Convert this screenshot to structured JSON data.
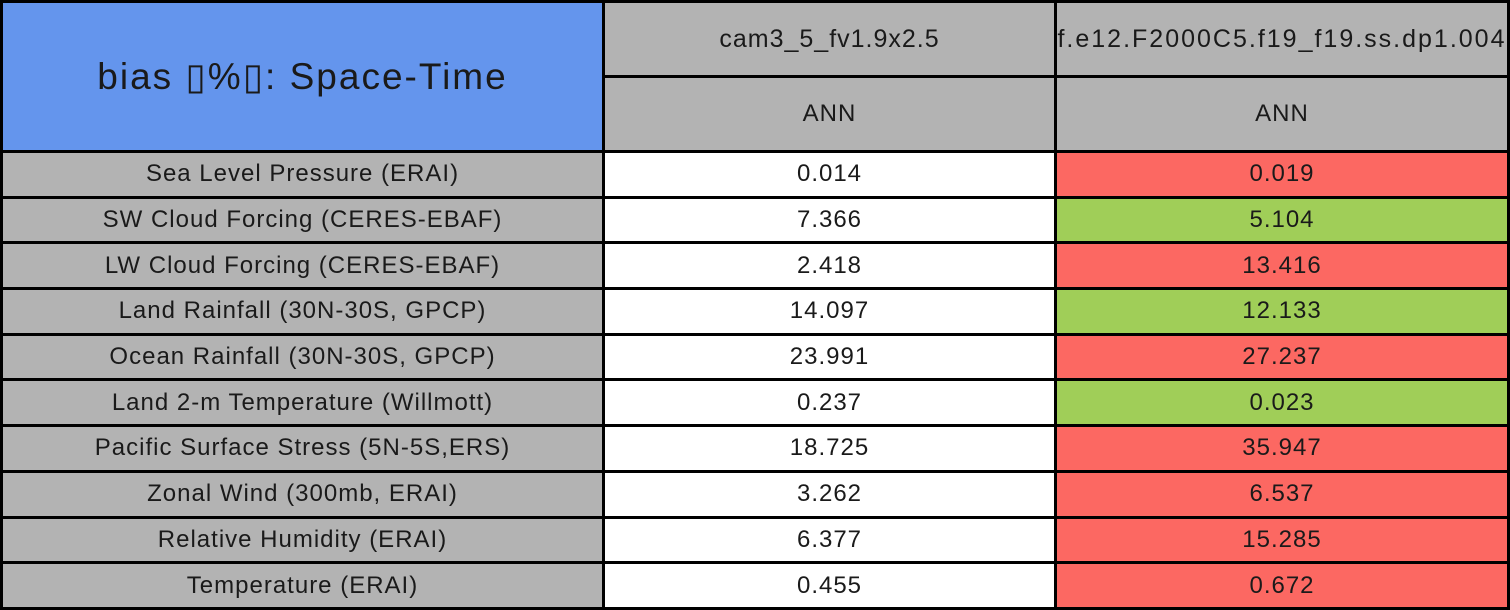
{
  "colors": {
    "title_bg": "#6495ED",
    "header_bg": "#B3B3B3",
    "label_bg": "#B3B3B3",
    "value_bg": "#FFFFFF",
    "worse_bg": "#FC6862",
    "better_bg": "#A0CE58",
    "border": "#000000",
    "text": "#1A1A1A"
  },
  "chart_data": {
    "type": "table",
    "title": "bias ▯%▯: Space-Time",
    "columns": [
      {
        "model": "cam3_5_fv1.9x2.5",
        "season": "ANN"
      },
      {
        "model": "f.e12.F2000C5.f19_f19.ss.dp1.004",
        "season": "ANN"
      }
    ],
    "rows": [
      {
        "label": "Sea Level Pressure (ERAI)",
        "values": [
          "0.014",
          "0.019"
        ],
        "highlight": [
          "none",
          "worse"
        ]
      },
      {
        "label": "SW Cloud Forcing (CERES-EBAF)",
        "values": [
          "7.366",
          "5.104"
        ],
        "highlight": [
          "none",
          "better"
        ]
      },
      {
        "label": "LW Cloud Forcing (CERES-EBAF)",
        "values": [
          "2.418",
          "13.416"
        ],
        "highlight": [
          "none",
          "worse"
        ]
      },
      {
        "label": "Land Rainfall (30N-30S, GPCP)",
        "values": [
          "14.097",
          "12.133"
        ],
        "highlight": [
          "none",
          "better"
        ]
      },
      {
        "label": "Ocean Rainfall (30N-30S, GPCP)",
        "values": [
          "23.991",
          "27.237"
        ],
        "highlight": [
          "none",
          "worse"
        ]
      },
      {
        "label": "Land 2-m Temperature (Willmott)",
        "values": [
          "0.237",
          "0.023"
        ],
        "highlight": [
          "none",
          "better"
        ]
      },
      {
        "label": "Pacific Surface Stress (5N-5S,ERS)",
        "values": [
          "18.725",
          "35.947"
        ],
        "highlight": [
          "none",
          "worse"
        ]
      },
      {
        "label": "Zonal Wind (300mb, ERAI)",
        "values": [
          "3.262",
          "6.537"
        ],
        "highlight": [
          "none",
          "worse"
        ]
      },
      {
        "label": "Relative Humidity (ERAI)",
        "values": [
          "6.377",
          "15.285"
        ],
        "highlight": [
          "none",
          "worse"
        ]
      },
      {
        "label": "Temperature (ERAI)",
        "values": [
          "0.455",
          "0.672"
        ],
        "highlight": [
          "none",
          "worse"
        ]
      }
    ]
  }
}
